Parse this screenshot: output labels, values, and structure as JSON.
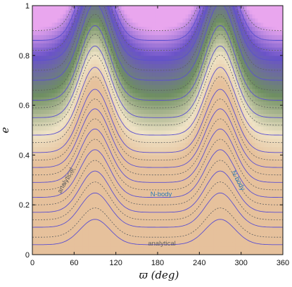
{
  "chart_data": {
    "type": "contour",
    "xlabel": "ϖ  (deg)",
    "ylabel": "e",
    "xlim": [
      0,
      360
    ],
    "ylim": [
      0,
      1
    ],
    "xticks": [
      "0",
      "60",
      "120",
      "180",
      "240",
      "300",
      "360"
    ],
    "xtick_values": [
      0,
      60,
      120,
      180,
      240,
      300,
      360
    ],
    "yticks": [
      "0",
      "0.2",
      "0.4",
      "0.6",
      "0.8",
      "1"
    ],
    "ytick_values": [
      0,
      0.2,
      0.4,
      0.6,
      0.8,
      1
    ],
    "colormap": {
      "low": "#e6c19c",
      "mid1": "#efe3c6",
      "mid2": "#6f8f62",
      "mid3": "#6a53c8",
      "high": "#e9a6ee"
    },
    "contour_line_colors": {
      "nbody": "#5b4fd0",
      "analytical": "#5e5e5e"
    },
    "solid_contours_label": "N-body",
    "dashed_contours_label": "analytical",
    "annotations": [
      {
        "text": "analytical",
        "color": "#5e5e5e"
      },
      {
        "text": "N-body",
        "color": "#2a7ab8"
      },
      {
        "text": "N-body",
        "color": "#2a7ab8"
      },
      {
        "text": "analytical",
        "color": "#5e5e5e"
      }
    ],
    "nbody_contour_levels": [
      0.04,
      0.11,
      0.17,
      0.23,
      0.29,
      0.35,
      0.41,
      0.48,
      0.55,
      0.62,
      0.7,
      0.78,
      0.86
    ],
    "analytical_contour_levels": [
      0.07,
      0.14,
      0.2,
      0.26,
      0.32,
      0.38,
      0.45,
      0.52,
      0.59,
      0.66,
      0.74,
      0.82,
      0.9
    ],
    "peak_positions_deg": [
      90,
      270
    ],
    "valley_positions_deg": [
      0,
      180,
      360
    ]
  }
}
